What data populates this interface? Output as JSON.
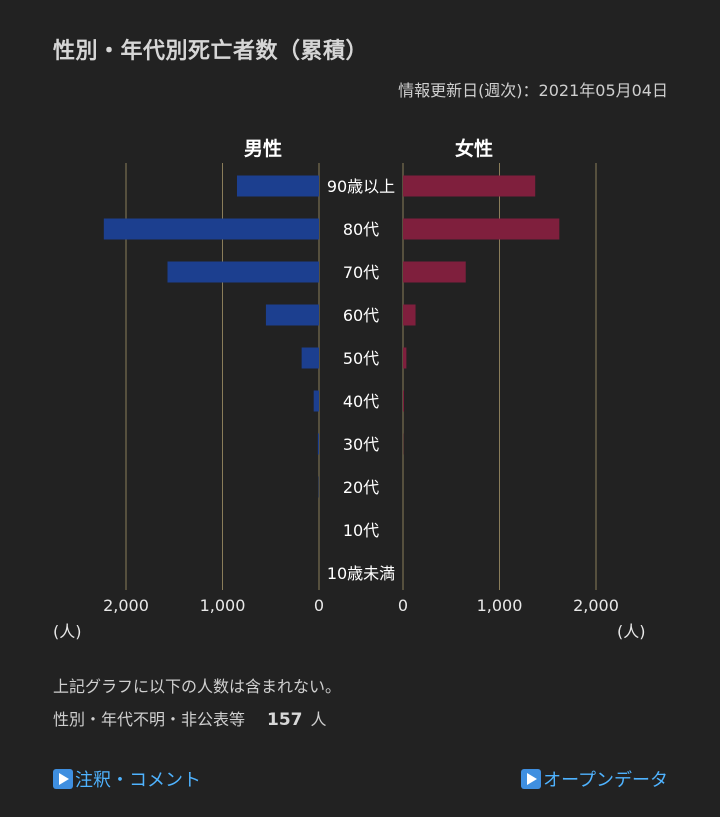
{
  "header": {
    "title": "性別・年代別死亡者数（累積）",
    "updated": "情報更新日(週次)：2021年05月04日"
  },
  "chart_data": {
    "type": "bar",
    "orientation": "horizontal-butterfly",
    "categories": [
      "90歳以上",
      "80代",
      "70代",
      "60代",
      "50代",
      "40代",
      "30代",
      "20代",
      "10代",
      "10歳未満"
    ],
    "series": [
      {
        "name": "男性",
        "values": [
          850,
          2230,
          1570,
          550,
          180,
          55,
          12,
          3,
          0,
          0
        ],
        "color": "#1c3f8f"
      },
      {
        "name": "女性",
        "values": [
          1370,
          1620,
          650,
          130,
          35,
          10,
          2,
          0,
          0,
          0
        ],
        "color": "#7f1f3d"
      }
    ],
    "xlim": [
      0,
      2500
    ],
    "ticks": [
      2000,
      1000,
      0
    ],
    "tick_labels_left": [
      "2,000",
      "1,000",
      "0"
    ],
    "tick_labels_right": [
      "0",
      "1,000",
      "2,000"
    ],
    "unit": "(人)",
    "grid": true,
    "grid_color": "#8a7d5a"
  },
  "note": "上記グラフに以下の人数は含まれない。",
  "unknown": {
    "label": "性別・年代不明・非公表等",
    "count": "157",
    "unit": "人"
  },
  "links": {
    "notes": "注釈・コメント",
    "open_data": "オープンデータ",
    "icon": "play-icon",
    "color": "#4fb3ff"
  },
  "colors": {
    "background": "#222222"
  }
}
